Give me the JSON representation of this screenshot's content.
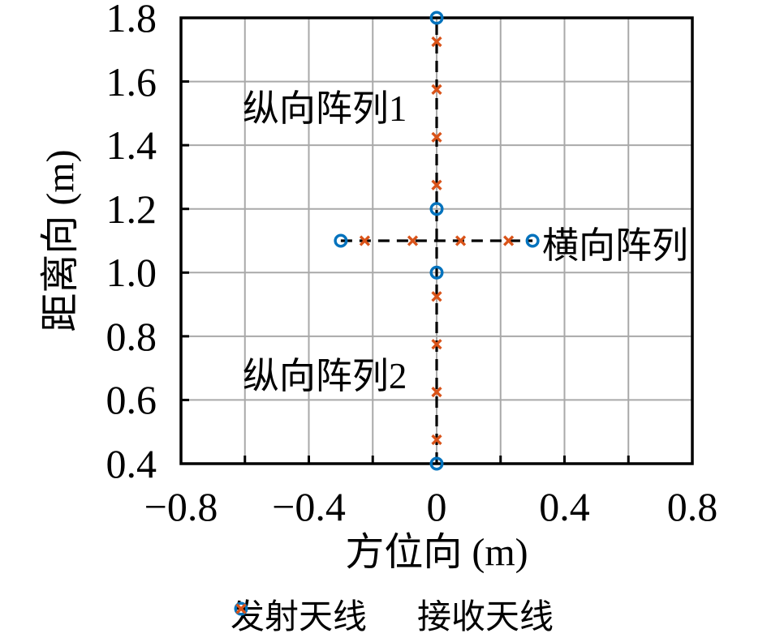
{
  "figure": {
    "background": "#ffffff",
    "axis_color": "#000000",
    "grid_color": "#a9a9a9"
  },
  "chart_data": {
    "type": "scatter",
    "title": "",
    "grid": true,
    "legend_position": "bottom",
    "x_axis": {
      "label": "方位向 (m)",
      "range": [
        -0.8,
        0.8
      ],
      "grid_step": 0.2,
      "tick_step": 0.2,
      "tick_labels": [
        {
          "v": -0.8,
          "t": "−0.8"
        },
        {
          "v": -0.4,
          "t": "−0.4"
        },
        {
          "v": 0,
          "t": "0"
        },
        {
          "v": 0.4,
          "t": "0.4"
        },
        {
          "v": 0.8,
          "t": "0.8"
        }
      ]
    },
    "y_axis": {
      "label": "距离向 (m)",
      "range": [
        0.4,
        1.8
      ],
      "grid_step": 0.2,
      "tick_step": 0.2,
      "tick_labels": [
        {
          "v": 1.8,
          "t": "1.8"
        },
        {
          "v": 1.6,
          "t": "1.6"
        },
        {
          "v": 1.4,
          "t": "1.4"
        },
        {
          "v": 1.2,
          "t": "1.2"
        },
        {
          "v": 1.0,
          "t": "1.0"
        },
        {
          "v": 0.8,
          "t": "0.8"
        },
        {
          "v": 0.6,
          "t": "0.6"
        },
        {
          "v": 0.4,
          "t": "0.4"
        }
      ]
    },
    "series": [
      {
        "name": "发射天线",
        "marker": "circle",
        "color": "#0072BD",
        "points": [
          [
            0,
            1.8
          ],
          [
            0,
            1.2
          ],
          [
            0,
            1.0
          ],
          [
            0,
            0.4
          ],
          [
            -0.3,
            1.1
          ],
          [
            0.3,
            1.1
          ]
        ]
      },
      {
        "name": "接收天线",
        "marker": "x",
        "color": "#D95319",
        "points": [
          [
            0,
            1.725
          ],
          [
            0,
            1.575
          ],
          [
            0,
            1.425
          ],
          [
            0,
            1.275
          ],
          [
            0,
            0.925
          ],
          [
            0,
            0.775
          ],
          [
            0,
            0.625
          ],
          [
            0,
            0.475
          ],
          [
            -0.225,
            1.1
          ],
          [
            -0.075,
            1.1
          ],
          [
            0.075,
            1.1
          ],
          [
            0.225,
            1.1
          ]
        ]
      }
    ],
    "lines": [
      {
        "style": "dashed",
        "color": "#000000",
        "from": [
          0,
          0.4
        ],
        "to": [
          0,
          1.8
        ]
      },
      {
        "style": "dashed",
        "color": "#000000",
        "from": [
          -0.3,
          1.1
        ],
        "to": [
          0.3,
          1.1
        ]
      }
    ],
    "annotations": [
      {
        "text": "纵向阵列1",
        "x": -0.35,
        "y": 1.515,
        "align": "center"
      },
      {
        "text": "纵向阵列2",
        "x": -0.35,
        "y": 0.675,
        "align": "center"
      },
      {
        "text": "横向阵列",
        "x": 0.33,
        "y": 1.085,
        "align": "left"
      }
    ],
    "legend": {
      "entries": [
        {
          "label": "发射天线",
          "marker": "circle",
          "color": "#0072BD"
        },
        {
          "label": "接收天线",
          "marker": "x",
          "color": "#D95319"
        }
      ]
    }
  }
}
